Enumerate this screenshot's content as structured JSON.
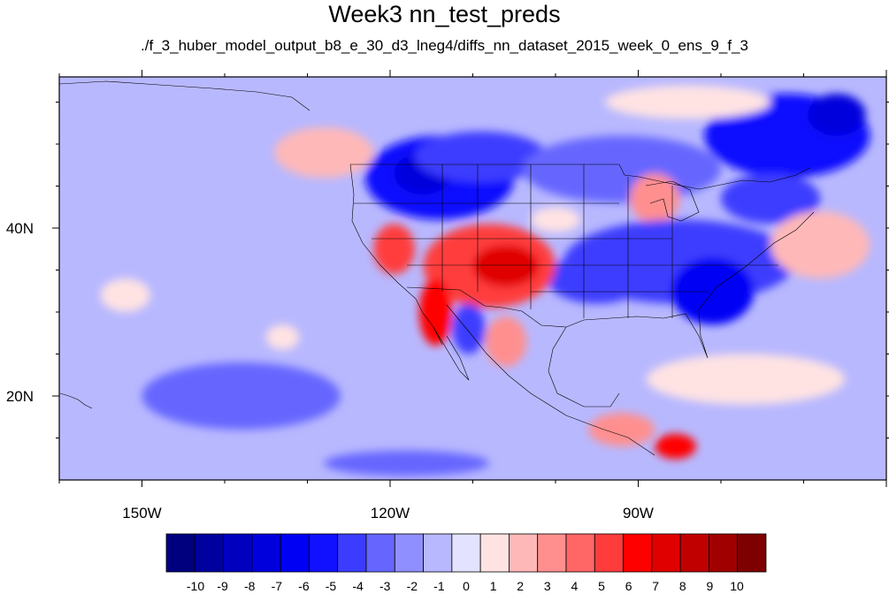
{
  "title": "Week3 nn_test_preds",
  "subtitle": "./f_3_huber_model_output_b8_e_30_d3_lneg4/diffs_nn_dataset_2015_week_0_ens_9_f_3",
  "map": {
    "lon_range": [
      -160,
      -60
    ],
    "lat_range": [
      10,
      58
    ],
    "lon_ticks": [
      {
        "lon": -150,
        "label": "150W"
      },
      {
        "lon": -120,
        "label": "120W"
      },
      {
        "lon": -90,
        "label": "90W"
      }
    ],
    "lat_ticks": [
      {
        "lat": 40,
        "label": "40N"
      },
      {
        "lat": 20,
        "label": "20N"
      }
    ],
    "background_value": -1
  },
  "colorbar": {
    "labels": [
      "-10",
      "-9",
      "-8",
      "-7",
      "-6",
      "-5",
      "-4",
      "-3",
      "-2",
      "-1",
      "0",
      "1",
      "2",
      "3",
      "4",
      "5",
      "6",
      "7",
      "8",
      "9",
      "10"
    ],
    "colors": [
      "#00007f",
      "#00009e",
      "#0000be",
      "#0000dc",
      "#0000f5",
      "#1111ff",
      "#3c3cff",
      "#6666ff",
      "#8f8fff",
      "#b8b8ff",
      "#e3e3ff",
      "#ffe3e3",
      "#ffb8b8",
      "#ff8f8f",
      "#ff6666",
      "#ff3c3c",
      "#ff0000",
      "#e00000",
      "#c00000",
      "#a00000",
      "#7f0000"
    ]
  },
  "chart_data": {
    "type": "heatmap",
    "title": "Week3 nn_test_preds",
    "subtitle": "./f_3_huber_model_output_b8_e_30_d3_lneg4/diffs_nn_dataset_2015_week_0_ens_9_f_3",
    "xlabel": "",
    "ylabel": "",
    "xlim": [
      -160,
      -60
    ],
    "ylim": [
      10,
      58
    ],
    "colorbar_levels": [
      -10,
      -9,
      -8,
      -7,
      -6,
      -5,
      -4,
      -3,
      -2,
      -1,
      0,
      1,
      2,
      3,
      4,
      5,
      6,
      7,
      8,
      9,
      10
    ],
    "blobs": [
      {
        "lon": -114,
        "lat": 46,
        "rlon": 9,
        "rlat": 5,
        "value": -5
      },
      {
        "lon": -116,
        "lat": 46.5,
        "rlon": 3.5,
        "rlat": 2.5,
        "value": -7
      },
      {
        "lon": -109,
        "lat": 48.5,
        "rlon": 8,
        "rlat": 3,
        "value": -4
      },
      {
        "lon": -92,
        "lat": 47,
        "rlon": 12,
        "rlat": 4,
        "value": -3
      },
      {
        "lon": -88,
        "lat": 43.5,
        "rlon": 3,
        "rlat": 3,
        "value": 3
      },
      {
        "lon": -85,
        "lat": 36,
        "rlon": 14,
        "rlat": 5,
        "value": -4
      },
      {
        "lon": -81,
        "lat": 32.5,
        "rlon": 5,
        "rlat": 4,
        "value": -6
      },
      {
        "lon": -95,
        "lat": 34,
        "rlon": 6,
        "rlat": 3,
        "value": -4
      },
      {
        "lon": -72,
        "lat": 51,
        "rlon": 10,
        "rlat": 5,
        "value": -5
      },
      {
        "lon": -66,
        "lat": 53.5,
        "rlon": 3.5,
        "rlat": 2.5,
        "value": -7
      },
      {
        "lon": -74,
        "lat": 43.5,
        "rlon": 6,
        "rlat": 3,
        "value": -4
      },
      {
        "lon": -108,
        "lat": 35.5,
        "rlon": 8,
        "rlat": 5,
        "value": 5
      },
      {
        "lon": -106,
        "lat": 35.5,
        "rlon": 4,
        "rlat": 2.5,
        "value": 7
      },
      {
        "lon": -119.5,
        "lat": 37.5,
        "rlon": 2.5,
        "rlat": 3,
        "value": 5
      },
      {
        "lon": -114.5,
        "lat": 30,
        "rlon": 2,
        "rlat": 4,
        "value": 6
      },
      {
        "lon": -110.5,
        "lat": 28,
        "rlon": 2,
        "rlat": 3,
        "value": -4
      },
      {
        "lon": -106,
        "lat": 26.5,
        "rlon": 2.5,
        "rlat": 3,
        "value": 3
      },
      {
        "lon": -85.5,
        "lat": 14,
        "rlon": 2.5,
        "rlat": 1.5,
        "value": 6
      },
      {
        "lon": -92,
        "lat": 16,
        "rlon": 4,
        "rlat": 2,
        "value": 3
      },
      {
        "lon": -118,
        "lat": 12,
        "rlon": 10,
        "rlat": 1.5,
        "value": -3
      },
      {
        "lon": -138,
        "lat": 20,
        "rlon": 12,
        "rlat": 4,
        "value": -3
      },
      {
        "lon": -128,
        "lat": 49,
        "rlon": 6,
        "rlat": 3,
        "value": 2
      },
      {
        "lon": -84,
        "lat": 55,
        "rlon": 10,
        "rlat": 2,
        "value": 1
      },
      {
        "lon": -100,
        "lat": 41,
        "rlon": 3,
        "rlat": 1.5,
        "value": 1
      },
      {
        "lon": -152,
        "lat": 32,
        "rlon": 3,
        "rlat": 2,
        "value": 1
      },
      {
        "lon": -133,
        "lat": 27,
        "rlon": 2,
        "rlat": 1.5,
        "value": 1
      },
      {
        "lon": -77,
        "lat": 22,
        "rlon": 12,
        "rlat": 3,
        "value": 1
      },
      {
        "lon": -68,
        "lat": 38,
        "rlon": 6,
        "rlat": 4,
        "value": 2
      }
    ]
  }
}
